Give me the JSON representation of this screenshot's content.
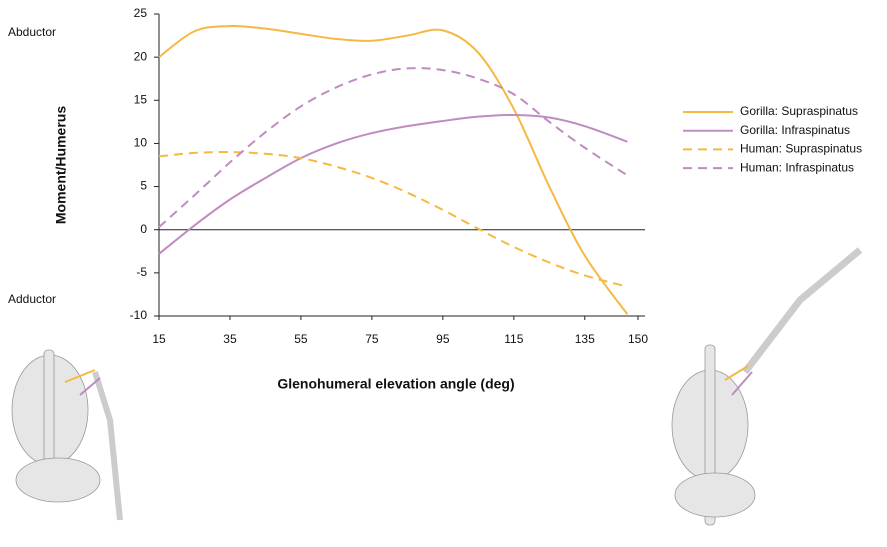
{
  "chart_data": {
    "type": "line",
    "y_label": "Moment/Humerus",
    "x_label": "Glenohumeral elevation angle (deg)",
    "annotations": [
      "Abductor",
      "Adductor"
    ],
    "x": [
      15,
      25,
      35,
      45,
      55,
      65,
      75,
      85,
      95,
      105,
      115,
      125,
      135,
      147
    ],
    "series": [
      {
        "name": "Gorilla: Supraspinatus",
        "color": "#f5b942",
        "dash": false,
        "values": [
          20,
          23,
          23.6,
          23.3,
          22.7,
          22.1,
          21.9,
          22.5,
          23.1,
          20.5,
          14,
          5,
          -3,
          -9.8
        ]
      },
      {
        "name": "Gorilla: Infraspinatus",
        "color": "#c08bc0",
        "dash": false,
        "values": [
          -2.8,
          0.5,
          3.5,
          6,
          8.3,
          10,
          11.2,
          12,
          12.6,
          13.1,
          13.3,
          13,
          12,
          10.2
        ]
      },
      {
        "name": "Human: Supraspinatus",
        "color": "#f5b942",
        "dash": true,
        "values": [
          8.5,
          8.9,
          9,
          8.8,
          8.3,
          7.3,
          6,
          4.3,
          2.3,
          0.1,
          -2,
          -3.8,
          -5.3,
          -6.6
        ]
      },
      {
        "name": "Human: Infraspinatus",
        "color": "#c08bc0",
        "dash": true,
        "values": [
          0.3,
          4,
          7.8,
          11.3,
          14.3,
          16.5,
          18,
          18.7,
          18.5,
          17.5,
          15.7,
          12.5,
          9.5,
          6.3
        ]
      }
    ],
    "xlim": [
      15,
      150
    ],
    "xticks": [
      15,
      35,
      55,
      75,
      95,
      115,
      135,
      150
    ],
    "ylim": [
      -10,
      25
    ],
    "yticks": [
      -10,
      -5,
      0,
      5,
      10,
      15,
      20,
      25
    ]
  }
}
